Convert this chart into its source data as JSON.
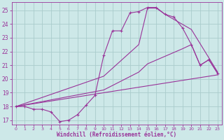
{
  "bg_color": "#cde8e8",
  "line_color": "#993399",
  "grid_color": "#aacccc",
  "xlabel": "Windchill (Refroidissement éolien,°C)",
  "xlabel_color": "#993399",
  "tick_color": "#993399",
  "xlim": [
    -0.5,
    23.5
  ],
  "ylim": [
    16.7,
    25.6
  ],
  "yticks": [
    17,
    18,
    19,
    20,
    21,
    22,
    23,
    24,
    25
  ],
  "xticks": [
    0,
    1,
    2,
    3,
    4,
    5,
    6,
    7,
    8,
    9,
    10,
    11,
    12,
    13,
    14,
    15,
    16,
    17,
    18,
    19,
    20,
    21,
    22,
    23
  ],
  "series": [
    {
      "x": [
        0,
        1,
        2,
        3,
        4,
        5,
        6,
        7,
        8,
        9,
        10,
        11,
        12,
        13,
        14,
        15,
        16,
        17,
        18,
        19,
        20,
        21,
        22,
        23
      ],
      "y": [
        18.0,
        18.0,
        17.8,
        17.8,
        17.6,
        16.9,
        17.0,
        17.4,
        18.1,
        18.8,
        21.7,
        23.5,
        23.5,
        24.8,
        24.9,
        25.2,
        25.2,
        24.7,
        24.5,
        23.7,
        22.5,
        21.0,
        21.4,
        20.4
      ],
      "marker": "+"
    },
    {
      "x": [
        0,
        10,
        14,
        15,
        16,
        17,
        20,
        23
      ],
      "y": [
        18.0,
        20.2,
        22.5,
        25.15,
        25.15,
        24.7,
        23.6,
        20.5
      ],
      "marker": null
    },
    {
      "x": [
        0,
        10,
        14,
        15,
        19,
        20,
        21,
        22,
        23
      ],
      "y": [
        18.0,
        19.2,
        20.5,
        21.1,
        22.2,
        22.5,
        21.0,
        21.4,
        20.4
      ],
      "marker": null
    },
    {
      "x": [
        0,
        23
      ],
      "y": [
        18.0,
        20.3
      ],
      "marker": null
    }
  ]
}
